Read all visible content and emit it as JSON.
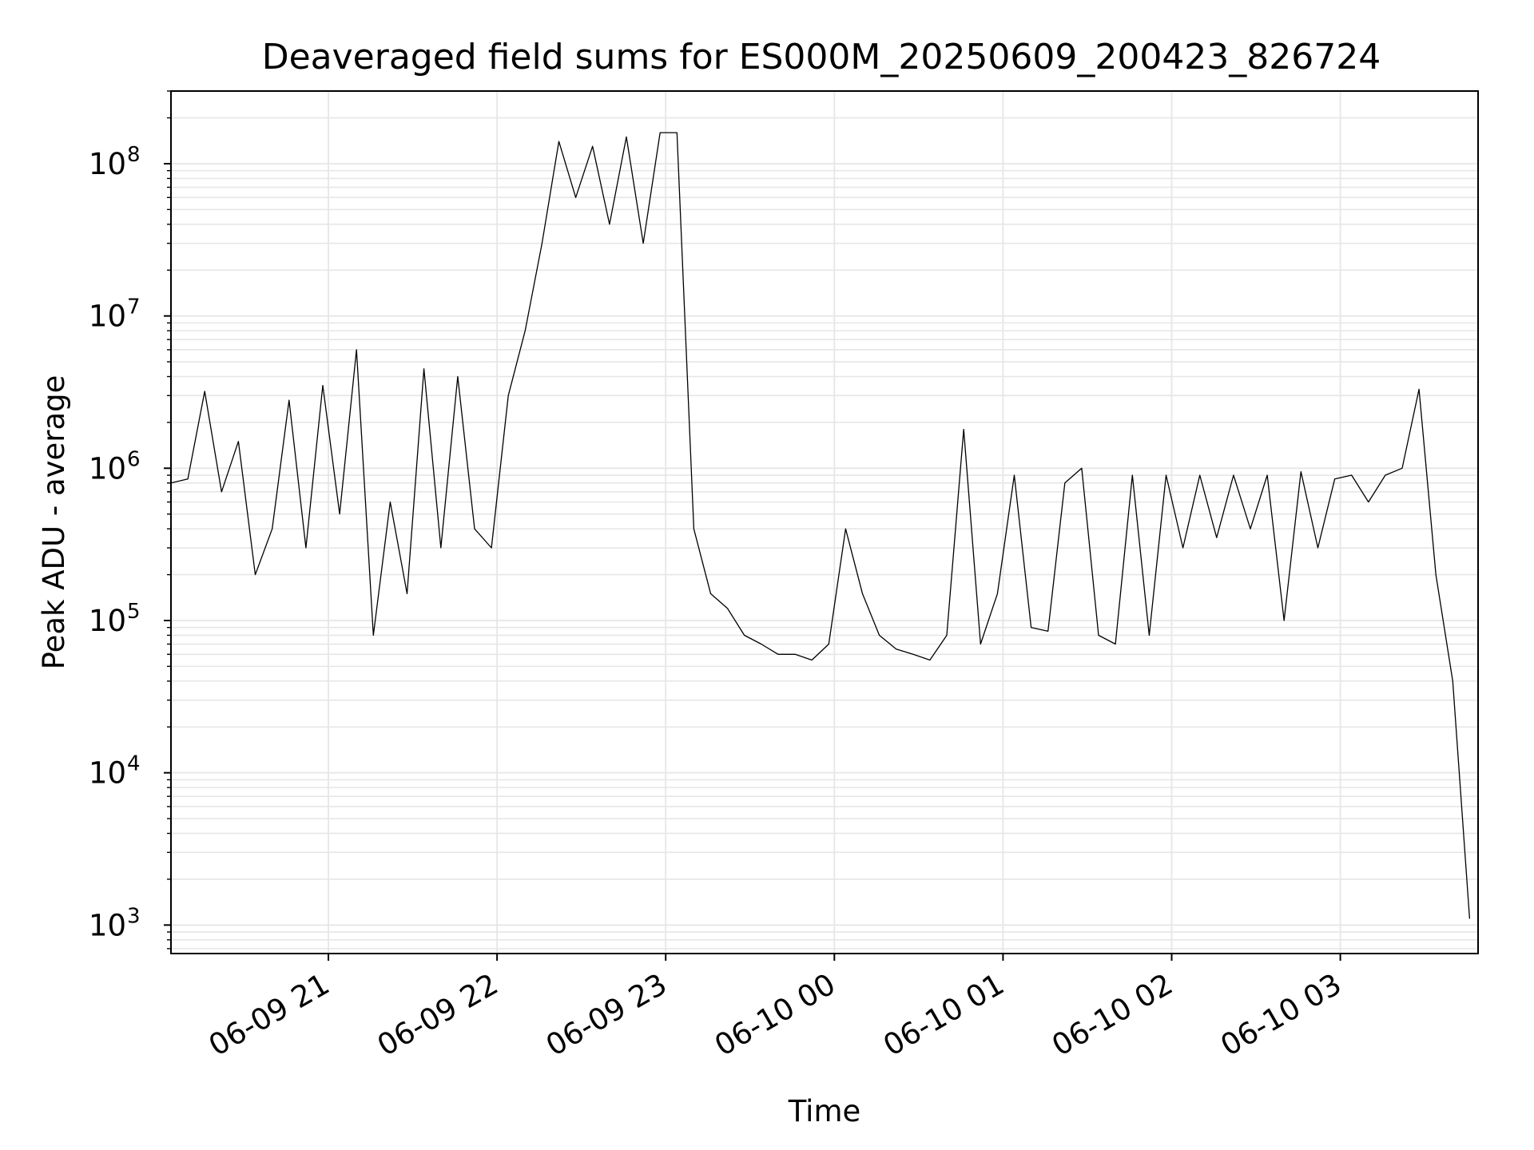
{
  "chart_data": {
    "type": "line",
    "title": "Deaveraged field sums for ES000M_20250609_200423_826724",
    "xlabel": "Time",
    "ylabel": "Peak ADU - average",
    "yscale": "log",
    "ylim": [
      650,
      300000000
    ],
    "xlim": [
      "2025-06-09 20:04",
      "2025-06-10 03:49"
    ],
    "grid": true,
    "grid_color": "#e6e6e6",
    "line_color": "#000000",
    "y_ticks": [
      {
        "value": 1000,
        "base": "10",
        "exp": "3"
      },
      {
        "value": 10000,
        "base": "10",
        "exp": "4"
      },
      {
        "value": 100000,
        "base": "10",
        "exp": "5"
      },
      {
        "value": 1000000,
        "base": "10",
        "exp": "6"
      },
      {
        "value": 10000000,
        "base": "10",
        "exp": "7"
      },
      {
        "value": 100000000,
        "base": "10",
        "exp": "8"
      }
    ],
    "x_ticks": [
      {
        "label": "06-09 21",
        "time": "2025-06-09 21:00"
      },
      {
        "label": "06-09 22",
        "time": "2025-06-09 22:00"
      },
      {
        "label": "06-09 23",
        "time": "2025-06-09 23:00"
      },
      {
        "label": "06-10 00",
        "time": "2025-06-10 00:00"
      },
      {
        "label": "06-10 01",
        "time": "2025-06-10 01:00"
      },
      {
        "label": "06-10 02",
        "time": "2025-06-10 02:00"
      },
      {
        "label": "06-10 03",
        "time": "2025-06-10 03:00"
      }
    ],
    "series": [
      {
        "x": [
          "2025-06-09 20:04",
          "2025-06-09 20:10",
          "2025-06-09 20:16",
          "2025-06-09 20:22",
          "2025-06-09 20:28",
          "2025-06-09 20:34",
          "2025-06-09 20:40",
          "2025-06-09 20:46",
          "2025-06-09 20:52",
          "2025-06-09 20:58",
          "2025-06-09 21:04",
          "2025-06-09 21:10",
          "2025-06-09 21:16",
          "2025-06-09 21:22",
          "2025-06-09 21:28",
          "2025-06-09 21:34",
          "2025-06-09 21:40",
          "2025-06-09 21:46",
          "2025-06-09 21:52",
          "2025-06-09 21:58",
          "2025-06-09 22:04",
          "2025-06-09 22:10",
          "2025-06-09 22:16",
          "2025-06-09 22:22",
          "2025-06-09 22:28",
          "2025-06-09 22:34",
          "2025-06-09 22:40",
          "2025-06-09 22:46",
          "2025-06-09 22:52",
          "2025-06-09 22:58",
          "2025-06-09 23:04",
          "2025-06-09 23:10",
          "2025-06-09 23:16",
          "2025-06-09 23:22",
          "2025-06-09 23:28",
          "2025-06-09 23:34",
          "2025-06-09 23:40",
          "2025-06-09 23:46",
          "2025-06-09 23:52",
          "2025-06-09 23:58",
          "2025-06-10 00:04",
          "2025-06-10 00:10",
          "2025-06-10 00:16",
          "2025-06-10 00:22",
          "2025-06-10 00:28",
          "2025-06-10 00:34",
          "2025-06-10 00:40",
          "2025-06-10 00:46",
          "2025-06-10 00:52",
          "2025-06-10 00:58",
          "2025-06-10 01:04",
          "2025-06-10 01:10",
          "2025-06-10 01:16",
          "2025-06-10 01:22",
          "2025-06-10 01:28",
          "2025-06-10 01:34",
          "2025-06-10 01:40",
          "2025-06-10 01:46",
          "2025-06-10 01:52",
          "2025-06-10 01:58",
          "2025-06-10 02:04",
          "2025-06-10 02:10",
          "2025-06-10 02:16",
          "2025-06-10 02:22",
          "2025-06-10 02:28",
          "2025-06-10 02:34",
          "2025-06-10 02:40",
          "2025-06-10 02:46",
          "2025-06-10 02:52",
          "2025-06-10 02:58",
          "2025-06-10 03:04",
          "2025-06-10 03:10",
          "2025-06-10 03:16",
          "2025-06-10 03:22",
          "2025-06-10 03:28",
          "2025-06-10 03:34",
          "2025-06-10 03:40",
          "2025-06-10 03:46"
        ],
        "y": [
          800000,
          850000,
          3200000,
          700000,
          1500000,
          200000,
          400000,
          2800000,
          300000,
          3500000,
          500000,
          6000000,
          80000,
          600000,
          150000,
          4500000,
          300000,
          4000000,
          400000,
          300000,
          3000000,
          8000000,
          30000000,
          140000000,
          60000000,
          130000000,
          40000000,
          150000000,
          30000000,
          160000000,
          160000000,
          400000,
          150000,
          120000,
          80000,
          70000,
          60000,
          60000,
          55000,
          70000,
          400000,
          150000,
          80000,
          65000,
          60000,
          55000,
          80000,
          1800000,
          70000,
          150000,
          900000,
          90000,
          85000,
          800000,
          1000000,
          80000,
          70000,
          900000,
          80000,
          900000,
          300000,
          900000,
          350000,
          900000,
          400000,
          900000,
          100000,
          950000,
          300000,
          850000,
          900000,
          600000,
          900000,
          1000000,
          3300000,
          200000,
          40000,
          1100
        ]
      }
    ]
  }
}
